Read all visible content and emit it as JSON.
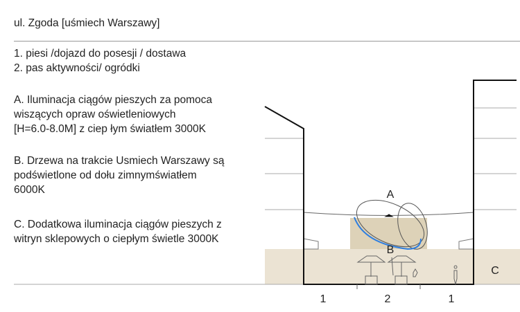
{
  "title": "ul. Zgoda [uśmiech Warszawy]",
  "zones_legend": [
    "1. piesi /dojazd do posesji / dostawa",
    "2. pas aktywności/ ogródki"
  ],
  "notes": {
    "A": [
      "A. Iluminacja ciągów pieszych za pomoca",
      "wiszących opraw oświetleniowych",
      "[H=6.0-8.0M] z ciep łym światłem 3000K"
    ],
    "B": [
      "B. Drzewa na trakcie Usmiech Warszawy są",
      "podświetlone od dołu zimnymświatłem",
      "6000K"
    ],
    "C": [
      "C. Dodatkowa iluminacja ciągów pieszych z",
      "witryn sklepowych o ciepłym świetle 3000K"
    ]
  },
  "diagram": {
    "labels": {
      "A": "A",
      "B": "B",
      "C": "C"
    },
    "zones": [
      "1",
      "2",
      "1"
    ],
    "colors": {
      "ground_band": "#ebe3d3",
      "garden_block": "#ddd2b8",
      "underlight": "#2f7fe0",
      "walls": "#111111"
    }
  }
}
